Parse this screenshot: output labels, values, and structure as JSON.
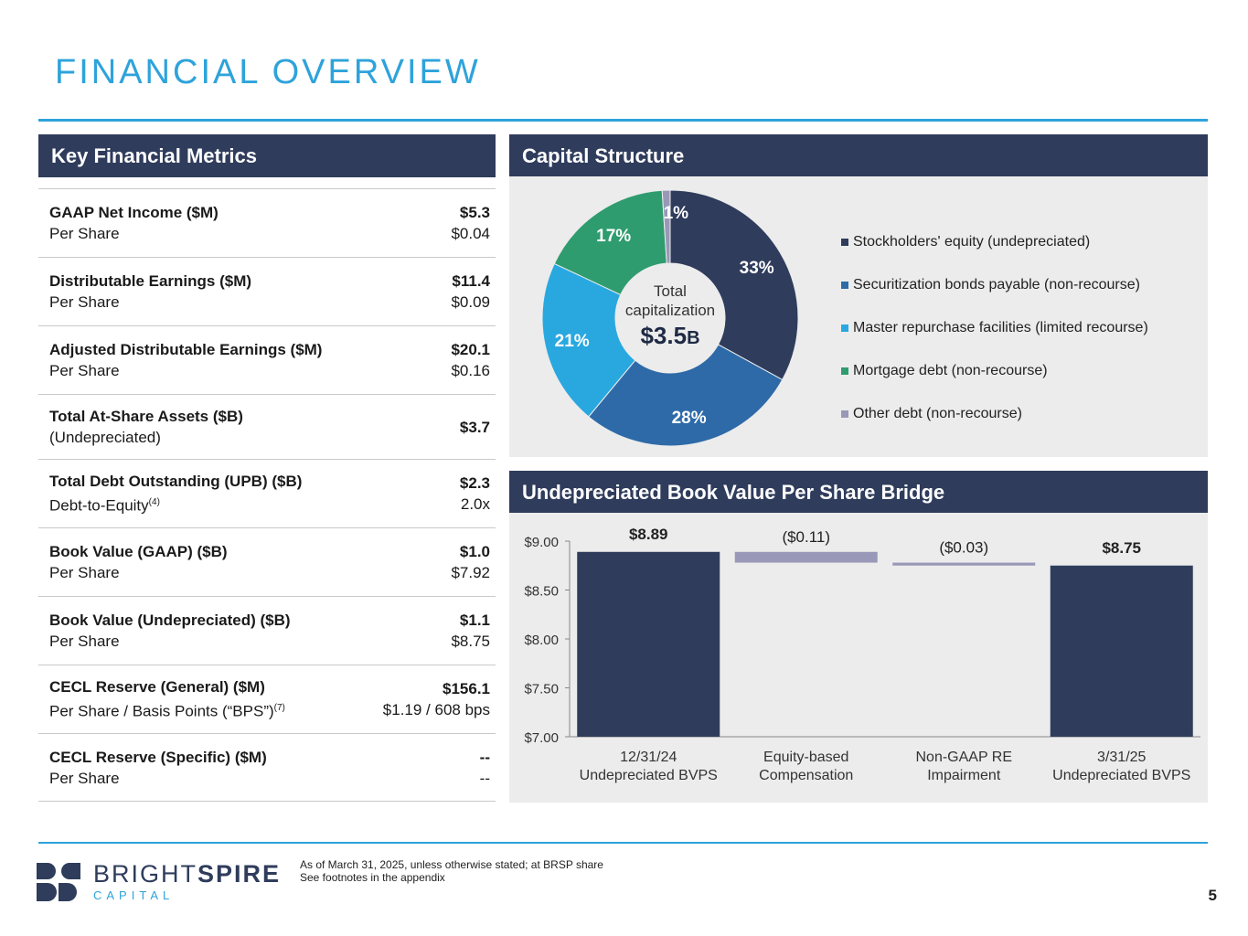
{
  "page": {
    "title": "FINANCIAL OVERVIEW",
    "page_number": "5",
    "footnote_line1": "As of March 31, 2025, unless otherwise stated; at BRSP share",
    "footnote_line2": "See footnotes in the appendix"
  },
  "logo": {
    "name_light": "BRIGHT",
    "name_bold": "SPIRE",
    "sub": "CAPITAL"
  },
  "colors": {
    "accent": "#2ea3db",
    "header": "#2f3c5c",
    "equity": "#2f3c5c",
    "securitization": "#2e6aa8",
    "master_repo": "#29a8e0",
    "mortgage": "#2e9c6e",
    "other": "#9a98b8"
  },
  "metrics": {
    "header": "Key Financial Metrics",
    "rows": [
      {
        "label": "GAAP Net Income ($M)",
        "sub": "Per Share",
        "sub_sup": "",
        "value": "$5.3",
        "sub_value": "$0.04"
      },
      {
        "label": "Distributable Earnings ($M)",
        "sub": "Per Share",
        "sub_sup": "",
        "value": "$11.4",
        "sub_value": "$0.09"
      },
      {
        "label": "Adjusted Distributable Earnings ($M)",
        "sub": "Per Share",
        "sub_sup": "",
        "value": "$20.1",
        "sub_value": "$0.16"
      },
      {
        "label": "Total At-Share Assets ($B)",
        "sub": "(Undepreciated)",
        "sub_sup": "",
        "value": "$3.7",
        "sub_value": ""
      },
      {
        "label": "Total Debt Outstanding (UPB) ($B)",
        "sub": "Debt-to-Equity",
        "sub_sup": "(4)",
        "value": "$2.3",
        "sub_value": "2.0x"
      },
      {
        "label": "Book Value (GAAP) ($B)",
        "sub": "Per Share",
        "sub_sup": "",
        "value": "$1.0",
        "sub_value": "$7.92"
      },
      {
        "label": "Book Value (Undepreciated) ($B)",
        "sub": "Per Share",
        "sub_sup": "",
        "value": "$1.1",
        "sub_value": "$8.75"
      },
      {
        "label": "CECL Reserve (General) ($M)",
        "sub": "Per Share / Basis Points (“BPS”)",
        "sub_sup": "(7)",
        "value": "$156.1",
        "sub_value": "$1.19 / 608 bps"
      },
      {
        "label": "CECL Reserve (Specific) ($M)",
        "sub": "Per Share",
        "sub_sup": "",
        "value": "--",
        "sub_value": "--"
      }
    ]
  },
  "capital": {
    "header": "Capital Structure",
    "center_line1": "Total",
    "center_line2": "capitalization",
    "center_value": "$3.5",
    "center_unit": "B"
  },
  "bridge": {
    "header": "Undepreciated Book Value Per Share Bridge"
  },
  "chart_data": [
    {
      "type": "pie",
      "title": "Capital Structure",
      "labels": [
        "Stockholders' equity (undepreciated)",
        "Securitization bonds payable (non-recourse)",
        "Master repurchase facilities (limited recourse)",
        "Mortgage debt (non-recourse)",
        "Other debt (non-recourse)"
      ],
      "values": [
        33,
        28,
        21,
        17,
        1
      ],
      "value_labels": [
        "33%",
        "28%",
        "21%",
        "17%",
        "1%"
      ],
      "legend": "right"
    },
    {
      "type": "bar",
      "subtype": "waterfall",
      "title": "Undepreciated Book Value Per Share Bridge",
      "categories": [
        [
          "12/31/24",
          "Undepreciated BVPS"
        ],
        [
          "Equity-based",
          "Compensation"
        ],
        [
          "Non-GAAP RE",
          "Impairment"
        ],
        [
          "3/31/25",
          "Undepreciated BVPS"
        ]
      ],
      "values": [
        8.89,
        -0.11,
        -0.03,
        8.75
      ],
      "kinds": [
        "total",
        "delta",
        "delta",
        "total"
      ],
      "value_labels": [
        "$8.89",
        "($0.11)",
        "($0.03)",
        "$8.75"
      ],
      "ylim": [
        7.0,
        9.0
      ],
      "yticks": [
        7.0,
        7.5,
        8.0,
        8.5,
        9.0
      ],
      "ytick_labels": [
        "$7.00",
        "$7.50",
        "$8.00",
        "$8.50",
        "$9.00"
      ]
    }
  ]
}
